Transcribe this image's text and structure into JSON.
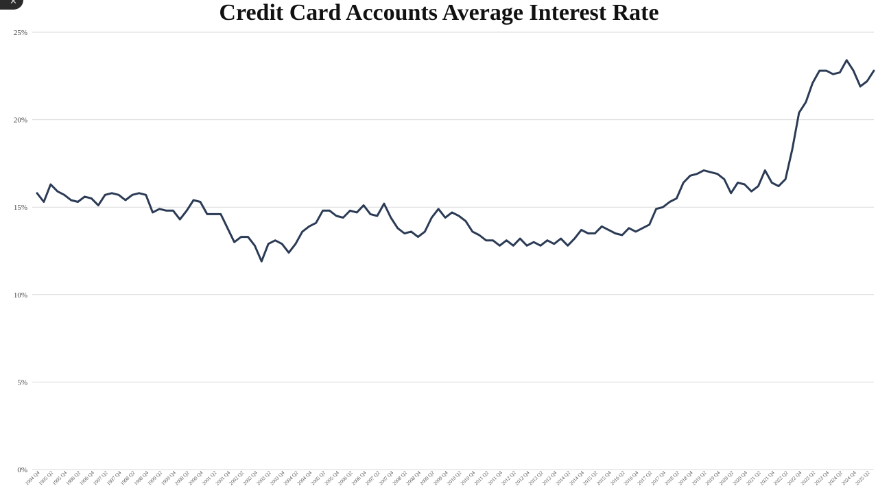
{
  "close_icon": "close-icon",
  "chart_data": {
    "type": "line",
    "title": "Credit Card Accounts Average Interest Rate",
    "xlabel": "",
    "ylabel": "",
    "ylim": [
      0,
      25
    ],
    "yticks": [
      "0%",
      "5%",
      "10%",
      "15%",
      "20%",
      "25%"
    ],
    "grid": true,
    "line_color": "#2b3b55",
    "x_tick_labels": [
      "1994 Q4",
      "1995 Q2",
      "1995 Q4",
      "1996 Q2",
      "1996 Q4",
      "1997 Q2",
      "1997 Q4",
      "1998 Q2",
      "1998 Q4",
      "1999 Q2",
      "1999 Q4",
      "2000 Q2",
      "2000 Q4",
      "2001 Q2",
      "2001 Q4",
      "2002 Q2",
      "2002 Q4",
      "2003 Q2",
      "2003 Q4",
      "2004 Q2",
      "2004 Q4",
      "2005 Q2",
      "2005 Q4",
      "2006 Q2",
      "2006 Q4",
      "2007 Q2",
      "2007 Q4",
      "2008 Q2",
      "2008 Q4",
      "2009 Q2",
      "2009 Q4",
      "2010 Q2",
      "2010 Q4",
      "2011 Q2",
      "2011 Q4",
      "2012 Q2",
      "2012 Q4",
      "2013 Q2",
      "2013 Q4",
      "2014 Q2",
      "2014 Q4",
      "2015 Q2",
      "2015 Q4",
      "2016 Q2",
      "2016 Q4",
      "2017 Q2",
      "2017 Q4",
      "2018 Q2",
      "2018 Q4",
      "2019 Q2",
      "2019 Q4",
      "2020 Q2",
      "2020 Q4",
      "2021 Q2",
      "2021 Q4",
      "2022 Q2",
      "2022 Q4",
      "2023 Q2",
      "2023 Q4",
      "2024 Q2",
      "2024 Q4",
      "2025 Q2"
    ],
    "values": [
      15.8,
      15.3,
      16.3,
      15.9,
      15.7,
      15.4,
      15.3,
      15.6,
      15.5,
      15.1,
      15.7,
      15.8,
      15.7,
      15.4,
      15.7,
      15.8,
      15.7,
      14.7,
      14.9,
      14.8,
      14.8,
      14.3,
      14.8,
      15.4,
      15.3,
      14.6,
      14.6,
      14.6,
      13.8,
      13.0,
      13.3,
      13.3,
      12.8,
      11.9,
      12.9,
      13.1,
      12.9,
      12.4,
      12.9,
      13.6,
      13.9,
      14.1,
      14.8,
      14.8,
      14.5,
      14.4,
      14.8,
      14.7,
      15.1,
      14.6,
      14.5,
      15.2,
      14.4,
      13.8,
      13.5,
      13.6,
      13.3,
      13.6,
      14.4,
      14.9,
      14.4,
      14.7,
      14.5,
      14.2,
      13.6,
      13.4,
      13.1,
      13.1,
      12.8,
      13.1,
      12.8,
      13.2,
      12.8,
      13.0,
      12.8,
      13.1,
      12.9,
      13.2,
      12.8,
      13.2,
      13.7,
      13.5,
      13.5,
      13.9,
      13.7,
      13.5,
      13.4,
      13.8,
      13.6,
      13.8,
      14.0,
      14.9,
      15.0,
      15.3,
      15.5,
      16.4,
      16.8,
      16.9,
      17.1,
      17.0,
      16.9,
      16.6,
      15.8,
      16.4,
      16.3,
      15.9,
      16.2,
      17.1,
      16.4,
      16.2,
      16.6,
      18.3,
      20.4,
      21.0,
      22.1,
      22.8,
      22.8,
      22.6,
      22.7,
      23.4,
      22.8,
      21.9,
      22.2,
      22.8
    ]
  }
}
